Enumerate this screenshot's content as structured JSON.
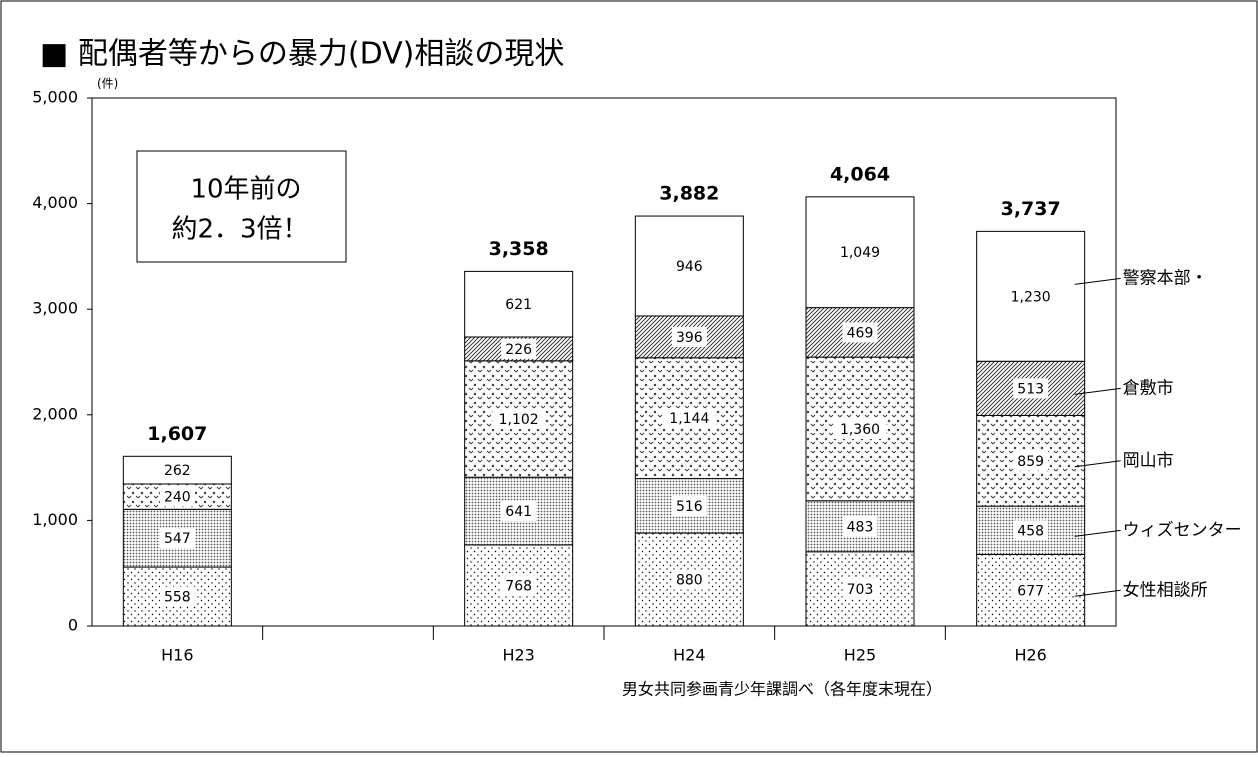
{
  "chart_data": {
    "type": "stacked_bar",
    "title": "■ 配偶者等からの暴力(DV)相談の現状",
    "y_unit": "(件)",
    "annotation": [
      "10年前の",
      "約2．3倍！"
    ],
    "source": "男女共同参画青少年課調べ（各年度末現在）",
    "categories": [
      "H16",
      null,
      "H23",
      "H24",
      "H25",
      "H26"
    ],
    "series": [
      {
        "name": "女性相談所",
        "values": [
          558,
          null,
          768,
          880,
          703,
          677
        ],
        "value_labels": [
          "558",
          null,
          "768",
          "880",
          "703",
          "677"
        ]
      },
      {
        "name": "ウィズセンター",
        "values": [
          547,
          null,
          641,
          516,
          483,
          458
        ],
        "value_labels": [
          "547",
          null,
          "641",
          "516",
          "483",
          "458"
        ]
      },
      {
        "name": "岡山市",
        "values": [
          240,
          null,
          1102,
          1144,
          1360,
          859
        ],
        "value_labels": [
          "240",
          null,
          "1,102",
          "1,144",
          "1,360",
          "859"
        ]
      },
      {
        "name": "倉敷市",
        "values": [
          null,
          null,
          226,
          396,
          469,
          513
        ],
        "value_labels": [
          null,
          null,
          "226",
          "396",
          "469",
          "513"
        ]
      },
      {
        "name": "警察本部・",
        "values": [
          262,
          null,
          621,
          946,
          1049,
          1230
        ],
        "value_labels": [
          "262",
          null,
          "621",
          "946",
          "1,049",
          "1,230"
        ]
      }
    ],
    "totals": [
      1607,
      null,
      3358,
      3882,
      4064,
      3737
    ],
    "total_labels": [
      "1,607",
      null,
      "3,358",
      "3,882",
      "4,064",
      "3,737"
    ],
    "ylim": [
      0,
      5000
    ],
    "yticks": [
      0,
      {
        "value": 1000,
        "label": "1,000"
      },
      {
        "value": 2000,
        "label": "2,000"
      },
      {
        "value": 3000,
        "label": "3,000"
      },
      {
        "value": 4000,
        "label": "4,000"
      },
      {
        "value": 5000,
        "label": "5,000"
      }
    ]
  }
}
